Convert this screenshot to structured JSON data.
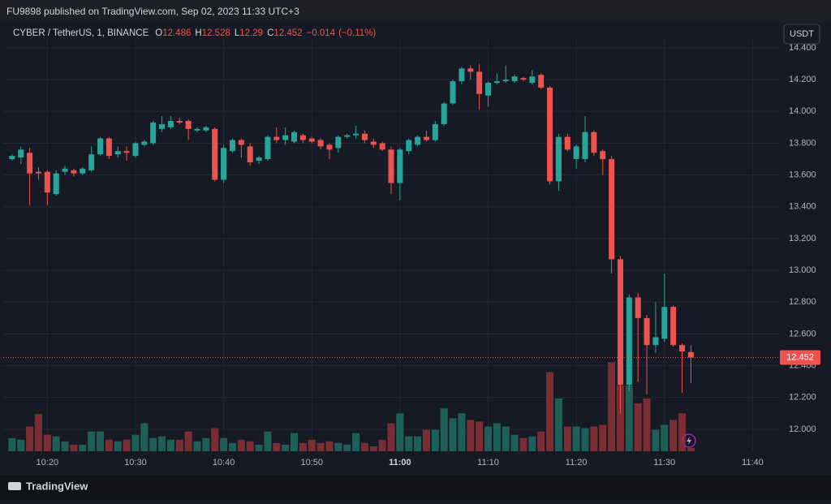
{
  "header": {
    "published": "FU9898 published on TradingView.com, Sep 02, 2023 11:33 UTC+3"
  },
  "toolbar": {
    "currency": "USDT"
  },
  "footer": {
    "brand": "TradingView"
  },
  "chart_data": {
    "type": "candlestick",
    "legend": {
      "symbol": "CYBER / TetherUS, 1, BINANCE",
      "open": {
        "label": "O",
        "value": 12.486
      },
      "high": {
        "label": "H",
        "value": 12.528
      },
      "low": {
        "label": "L",
        "value": 12.29
      },
      "close": {
        "label": "C",
        "value": 12.452
      },
      "change": {
        "value": -0.014,
        "label": "−0.014"
      },
      "change_pct": {
        "value": -0.11,
        "label": "(−0.11%)"
      }
    },
    "x": [
      "10:16",
      "10:17",
      "10:18",
      "10:19",
      "10:20",
      "10:21",
      "10:22",
      "10:23",
      "10:24",
      "10:25",
      "10:26",
      "10:27",
      "10:28",
      "10:29",
      "10:30",
      "10:31",
      "10:32",
      "10:33",
      "10:34",
      "10:35",
      "10:36",
      "10:37",
      "10:38",
      "10:39",
      "10:40",
      "10:41",
      "10:42",
      "10:43",
      "10:44",
      "10:45",
      "10:46",
      "10:47",
      "10:48",
      "10:49",
      "10:50",
      "10:51",
      "10:52",
      "10:53",
      "10:54",
      "10:55",
      "10:56",
      "10:57",
      "10:58",
      "10:59",
      "11:00",
      "11:01",
      "11:02",
      "11:03",
      "11:04",
      "11:05",
      "11:06",
      "11:07",
      "11:08",
      "11:09",
      "11:10",
      "11:11",
      "11:12",
      "11:13",
      "11:14",
      "11:15",
      "11:16",
      "11:17",
      "11:18",
      "11:19",
      "11:20",
      "11:21",
      "11:22",
      "11:23",
      "11:24",
      "11:25",
      "11:26",
      "11:27",
      "11:28",
      "11:29",
      "11:30",
      "11:31",
      "11:32",
      "11:33"
    ],
    "open": [
      13.7,
      13.71,
      13.74,
      13.62,
      13.62,
      13.48,
      13.62,
      13.63,
      13.61,
      13.63,
      13.73,
      13.83,
      13.73,
      13.75,
      13.72,
      13.79,
      13.8,
      13.89,
      13.9,
      13.94,
      13.94,
      13.88,
      13.88,
      13.89,
      13.57,
      13.75,
      13.82,
      13.78,
      13.69,
      13.7,
      13.84,
      13.82,
      13.81,
      13.85,
      13.83,
      13.82,
      13.79,
      13.77,
      13.84,
      13.85,
      13.86,
      13.81,
      13.8,
      13.76,
      13.55,
      13.75,
      13.79,
      13.84,
      13.82,
      13.92,
      14.05,
      14.19,
      14.27,
      14.25,
      14.1,
      14.18,
      14.19,
      14.19,
      14.21,
      14.18,
      14.23,
      14.15,
      13.56,
      13.84,
      13.7,
      13.7,
      13.87,
      13.75,
      13.7,
      13.07,
      12.28,
      12.83,
      12.7,
      12.53,
      12.57,
      12.77,
      12.53,
      12.486
    ],
    "high": [
      13.73,
      13.78,
      13.77,
      13.65,
      13.63,
      13.63,
      13.66,
      13.64,
      13.65,
      13.78,
      13.84,
      13.84,
      13.78,
      13.78,
      13.81,
      13.82,
      13.94,
      13.97,
      13.97,
      13.96,
      13.95,
      13.9,
      13.91,
      13.9,
      13.79,
      13.83,
      13.83,
      13.8,
      13.72,
      13.85,
      13.9,
      13.9,
      13.88,
      13.86,
      13.84,
      13.83,
      13.8,
      13.85,
      13.86,
      13.91,
      13.88,
      13.83,
      13.81,
      13.78,
      13.77,
      13.83,
      13.85,
      13.88,
      13.94,
      14.06,
      14.2,
      14.28,
      14.29,
      14.3,
      14.19,
      14.24,
      14.29,
      14.23,
      14.22,
      14.26,
      14.24,
      14.16,
      13.86,
      13.86,
      13.79,
      13.97,
      13.88,
      13.76,
      13.72,
      13.09,
      12.85,
      12.86,
      12.72,
      12.8,
      12.98,
      12.78,
      12.54,
      12.528
    ],
    "low": [
      13.69,
      13.67,
      13.41,
      13.57,
      13.41,
      13.47,
      13.6,
      13.59,
      13.6,
      13.62,
      13.72,
      13.7,
      13.71,
      13.69,
      13.71,
      13.78,
      13.79,
      13.87,
      13.89,
      13.92,
      13.82,
      13.87,
      13.87,
      13.56,
      13.55,
      13.74,
      13.71,
      13.66,
      13.67,
      13.69,
      13.8,
      13.79,
      13.8,
      13.8,
      13.8,
      13.76,
      13.7,
      13.74,
      13.83,
      13.83,
      13.8,
      13.77,
      13.75,
      13.48,
      13.44,
      13.73,
      13.78,
      13.81,
      13.81,
      13.91,
      14.04,
      14.17,
      14.2,
      14.01,
      14.03,
      14.17,
      14.18,
      14.18,
      14.19,
      14.17,
      14.14,
      13.54,
      13.5,
      13.75,
      13.64,
      13.68,
      13.72,
      13.6,
      12.98,
      12.1,
      12.24,
      12.3,
      12.22,
      12.48,
      12.55,
      12.52,
      12.23,
      12.29
    ],
    "close": [
      13.72,
      13.76,
      13.61,
      13.61,
      13.49,
      13.61,
      13.64,
      13.61,
      13.64,
      13.73,
      13.83,
      13.72,
      13.75,
      13.74,
      13.8,
      13.81,
      13.93,
      13.92,
      13.94,
      13.93,
      13.89,
      13.89,
      13.9,
      13.57,
      13.77,
      13.82,
      13.79,
      13.68,
      13.71,
      13.84,
      13.82,
      13.85,
      13.87,
      13.82,
      13.81,
      13.78,
      13.76,
      13.84,
      13.85,
      13.86,
      13.82,
      13.79,
      13.76,
      13.55,
      13.76,
      13.82,
      13.84,
      13.82,
      13.92,
      14.05,
      14.19,
      14.27,
      14.25,
      14.11,
      14.18,
      14.19,
      14.2,
      14.22,
      14.2,
      14.22,
      14.15,
      13.56,
      13.84,
      13.76,
      13.78,
      13.87,
      13.74,
      13.7,
      13.07,
      12.28,
      12.83,
      12.7,
      12.53,
      12.58,
      12.77,
      12.53,
      12.49,
      12.452
    ],
    "volume": [
      16,
      14,
      30,
      45,
      20,
      18,
      12,
      8,
      8,
      24,
      24,
      14,
      12,
      14,
      20,
      34,
      16,
      18,
      14,
      14,
      24,
      12,
      16,
      28,
      16,
      10,
      14,
      12,
      8,
      24,
      10,
      8,
      22,
      10,
      14,
      10,
      12,
      10,
      8,
      22,
      10,
      6,
      14,
      34,
      46,
      18,
      18,
      26,
      26,
      52,
      40,
      46,
      38,
      36,
      30,
      34,
      30,
      20,
      16,
      18,
      24,
      96,
      64,
      30,
      30,
      28,
      30,
      32,
      108,
      80,
      80,
      58,
      64,
      26,
      32,
      38,
      46,
      4
    ],
    "volume_ylim": [
      0,
      500
    ],
    "up_color": "#26a69a",
    "down_color": "#ef5350",
    "up_volume_color": "#1f5f5a",
    "down_volume_color": "#7a2e33",
    "last_price": 12.452,
    "xlim": [
      "10:15",
      "11:43"
    ],
    "xticks": [
      "10:20",
      "10:30",
      "10:40",
      "10:50",
      "11:00",
      "11:10",
      "11:20",
      "11:30",
      "11:40"
    ],
    "ylim": [
      11.862,
      14.456
    ],
    "yticks": [
      {
        "value": 12.0,
        "label": "12.000"
      },
      {
        "value": 12.2,
        "label": "12.200"
      },
      {
        "value": 12.4,
        "label": "12.400"
      },
      {
        "value": 12.6,
        "label": "12.600"
      },
      {
        "value": 12.8,
        "label": "12.800"
      },
      {
        "value": 13.0,
        "label": "13.000"
      },
      {
        "value": 13.2,
        "label": "13.200"
      },
      {
        "value": 13.4,
        "label": "13.400"
      },
      {
        "value": 13.6,
        "label": "13.600"
      },
      {
        "value": 13.8,
        "label": "13.800"
      },
      {
        "value": 14.0,
        "label": "14.000"
      },
      {
        "value": 14.2,
        "label": "14.200"
      },
      {
        "value": 14.4,
        "label": "14.400"
      }
    ],
    "grid": true
  }
}
